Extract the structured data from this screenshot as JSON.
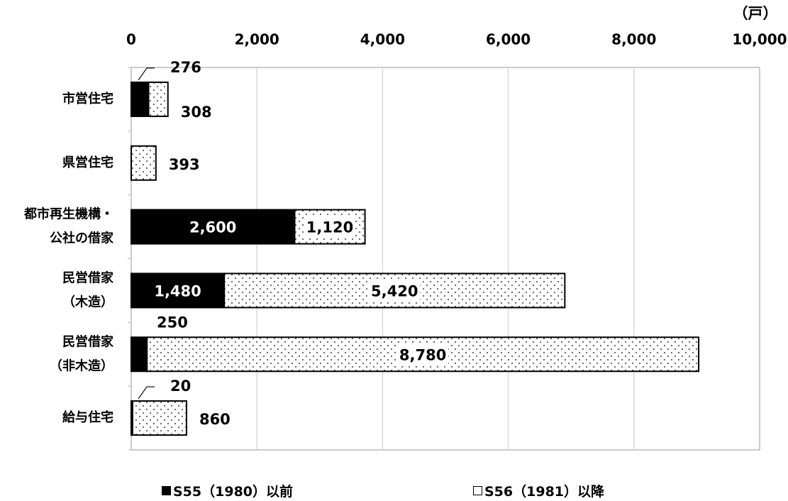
{
  "chart_data": {
    "type": "bar",
    "orientation": "horizontal",
    "stacked": true,
    "unit_label": "（戸）",
    "categories": [
      [
        "市営住宅"
      ],
      [
        "県営住宅"
      ],
      [
        "都市再生機構・",
        "公社の借家"
      ],
      [
        "民営借家",
        "（木造）"
      ],
      [
        "民営借家",
        "（非木造）"
      ],
      [
        "給与住宅"
      ]
    ],
    "series": [
      {
        "name": "S55（1980）以前",
        "fill": "solid",
        "color": "#000000",
        "values": [
          276,
          0,
          2600,
          1480,
          250,
          20
        ]
      },
      {
        "name": "S56（1981）以降",
        "fill": "dots",
        "color": "#ffffff",
        "values": [
          308,
          393,
          1120,
          5420,
          8780,
          860
        ]
      }
    ],
    "data_labels": {
      "s0": [
        "276",
        null,
        "2,600",
        "1,480",
        "250",
        "20"
      ],
      "s1": [
        "308",
        "393",
        "1,120",
        "5,420",
        "8,780",
        "860"
      ]
    },
    "xlim": [
      0,
      10000
    ],
    "xticks": [
      0,
      2000,
      4000,
      6000,
      8000,
      10000
    ],
    "xtick_labels": [
      "0",
      "2,000",
      "4,000",
      "6,000",
      "8,000",
      "10,000"
    ],
    "x_axis_position": "top",
    "grid": true,
    "legend_position": "bottom"
  },
  "legend": {
    "items": [
      "S55（1980）以前",
      "S56（1981）以降"
    ]
  }
}
